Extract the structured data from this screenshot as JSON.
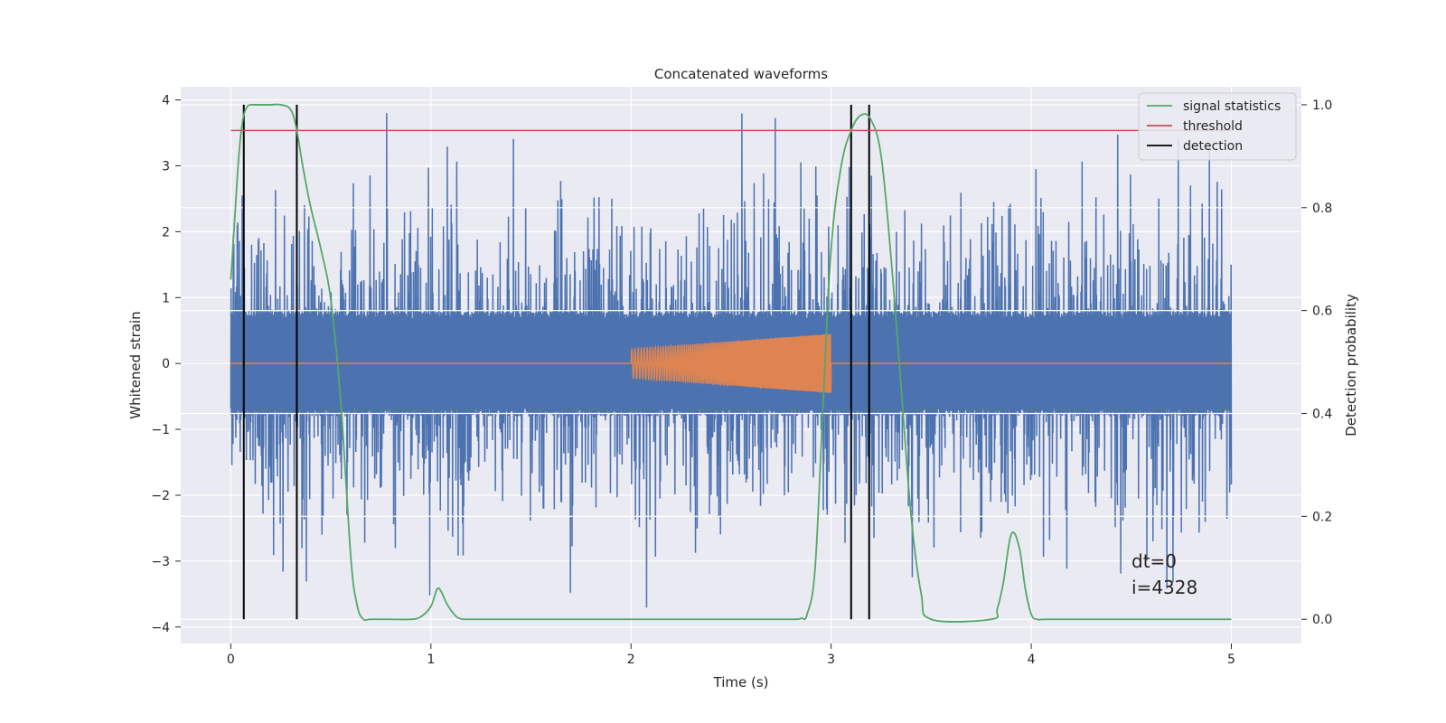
{
  "chart_data": {
    "type": "line",
    "title": "Concatenated waveforms",
    "xlabel": "Time (s)",
    "ylabel": "Whitened strain",
    "ylabel_right": "Detection probability",
    "xlim": [
      -0.25,
      5.35
    ],
    "ylim": [
      -4.25,
      4.2
    ],
    "ylim_right": [
      -0.047,
      1.035
    ],
    "xticks": [
      0,
      1,
      2,
      3,
      4,
      5
    ],
    "yticks": [
      -4,
      -3,
      -2,
      -1,
      0,
      1,
      2,
      3,
      4
    ],
    "yticks_right": [
      0.0,
      0.2,
      0.4,
      0.6,
      0.8,
      1.0
    ],
    "xtick_labels": [
      "0",
      "1",
      "2",
      "3",
      "4",
      "5"
    ],
    "ytick_labels": [
      "−4",
      "−3",
      "−2",
      "−1",
      "0",
      "1",
      "2",
      "3",
      "4"
    ],
    "ytick_right_labels": [
      "0.0",
      "0.2",
      "0.4",
      "0.6",
      "0.8",
      "1.0"
    ],
    "grid": true,
    "legend_position": "top-right",
    "series": [
      {
        "name": "",
        "axis": "left",
        "kind": "whitened strain noise",
        "x_range": [
          0,
          5
        ],
        "baseline_amplitude": 0.8,
        "spike_max": 3.8,
        "color": "#4c72b0"
      },
      {
        "name": "",
        "axis": "left",
        "kind": "injected chirp",
        "x_range": [
          2,
          3
        ],
        "amplitude_start": 0.22,
        "amplitude_end": 0.45,
        "color": "#dd8452"
      },
      {
        "name": "signal statistics",
        "axis": "right",
        "color": "#55a868",
        "x": [
          0.0,
          0.02,
          0.04,
          0.06,
          0.08,
          0.1,
          0.12,
          0.15,
          0.2,
          0.25,
          0.3,
          0.33,
          0.36,
          0.4,
          0.45,
          0.5,
          0.55,
          0.6,
          0.63,
          0.66,
          0.7,
          0.8,
          0.9,
          0.95,
          1.0,
          1.03,
          1.05,
          1.08,
          1.12,
          1.15,
          1.2,
          1.5,
          2.0,
          2.5,
          2.8,
          2.85,
          2.88,
          2.92,
          2.96,
          3.0,
          3.05,
          3.1,
          3.15,
          3.2,
          3.25,
          3.3,
          3.35,
          3.4,
          3.45,
          3.5,
          3.8,
          3.83,
          3.86,
          3.9,
          3.94,
          3.97,
          4.0,
          4.03,
          4.1,
          4.5,
          5.0
        ],
        "y": [
          0.66,
          0.78,
          0.9,
          0.97,
          0.995,
          1.0,
          1.0,
          1.0,
          1.0,
          1.0,
          0.99,
          0.95,
          0.88,
          0.8,
          0.72,
          0.62,
          0.42,
          0.12,
          0.03,
          0.001,
          0.0,
          0.0,
          0.0,
          0.005,
          0.025,
          0.058,
          0.055,
          0.03,
          0.008,
          0.001,
          0.0,
          0.0,
          0.0,
          0.0,
          0.0,
          0.002,
          0.01,
          0.1,
          0.42,
          0.72,
          0.88,
          0.95,
          0.98,
          0.97,
          0.9,
          0.7,
          0.45,
          0.2,
          0.05,
          0.0,
          0.0,
          0.02,
          0.07,
          0.165,
          0.14,
          0.06,
          0.01,
          0.0,
          0.0,
          0.0,
          0.0
        ]
      },
      {
        "name": "threshold",
        "axis": "right",
        "color": "#c44e52",
        "x": [
          0,
          5
        ],
        "y": [
          0.95,
          0.95
        ]
      },
      {
        "name": "detection",
        "axis": "right",
        "color": "#000000",
        "kind": "vertical lines",
        "x": [
          0.065,
          0.33,
          3.1,
          3.19
        ],
        "y_range": [
          0.0,
          1.0
        ]
      }
    ],
    "annotations": {
      "dt": "dt=0",
      "i": "i=4328"
    }
  }
}
